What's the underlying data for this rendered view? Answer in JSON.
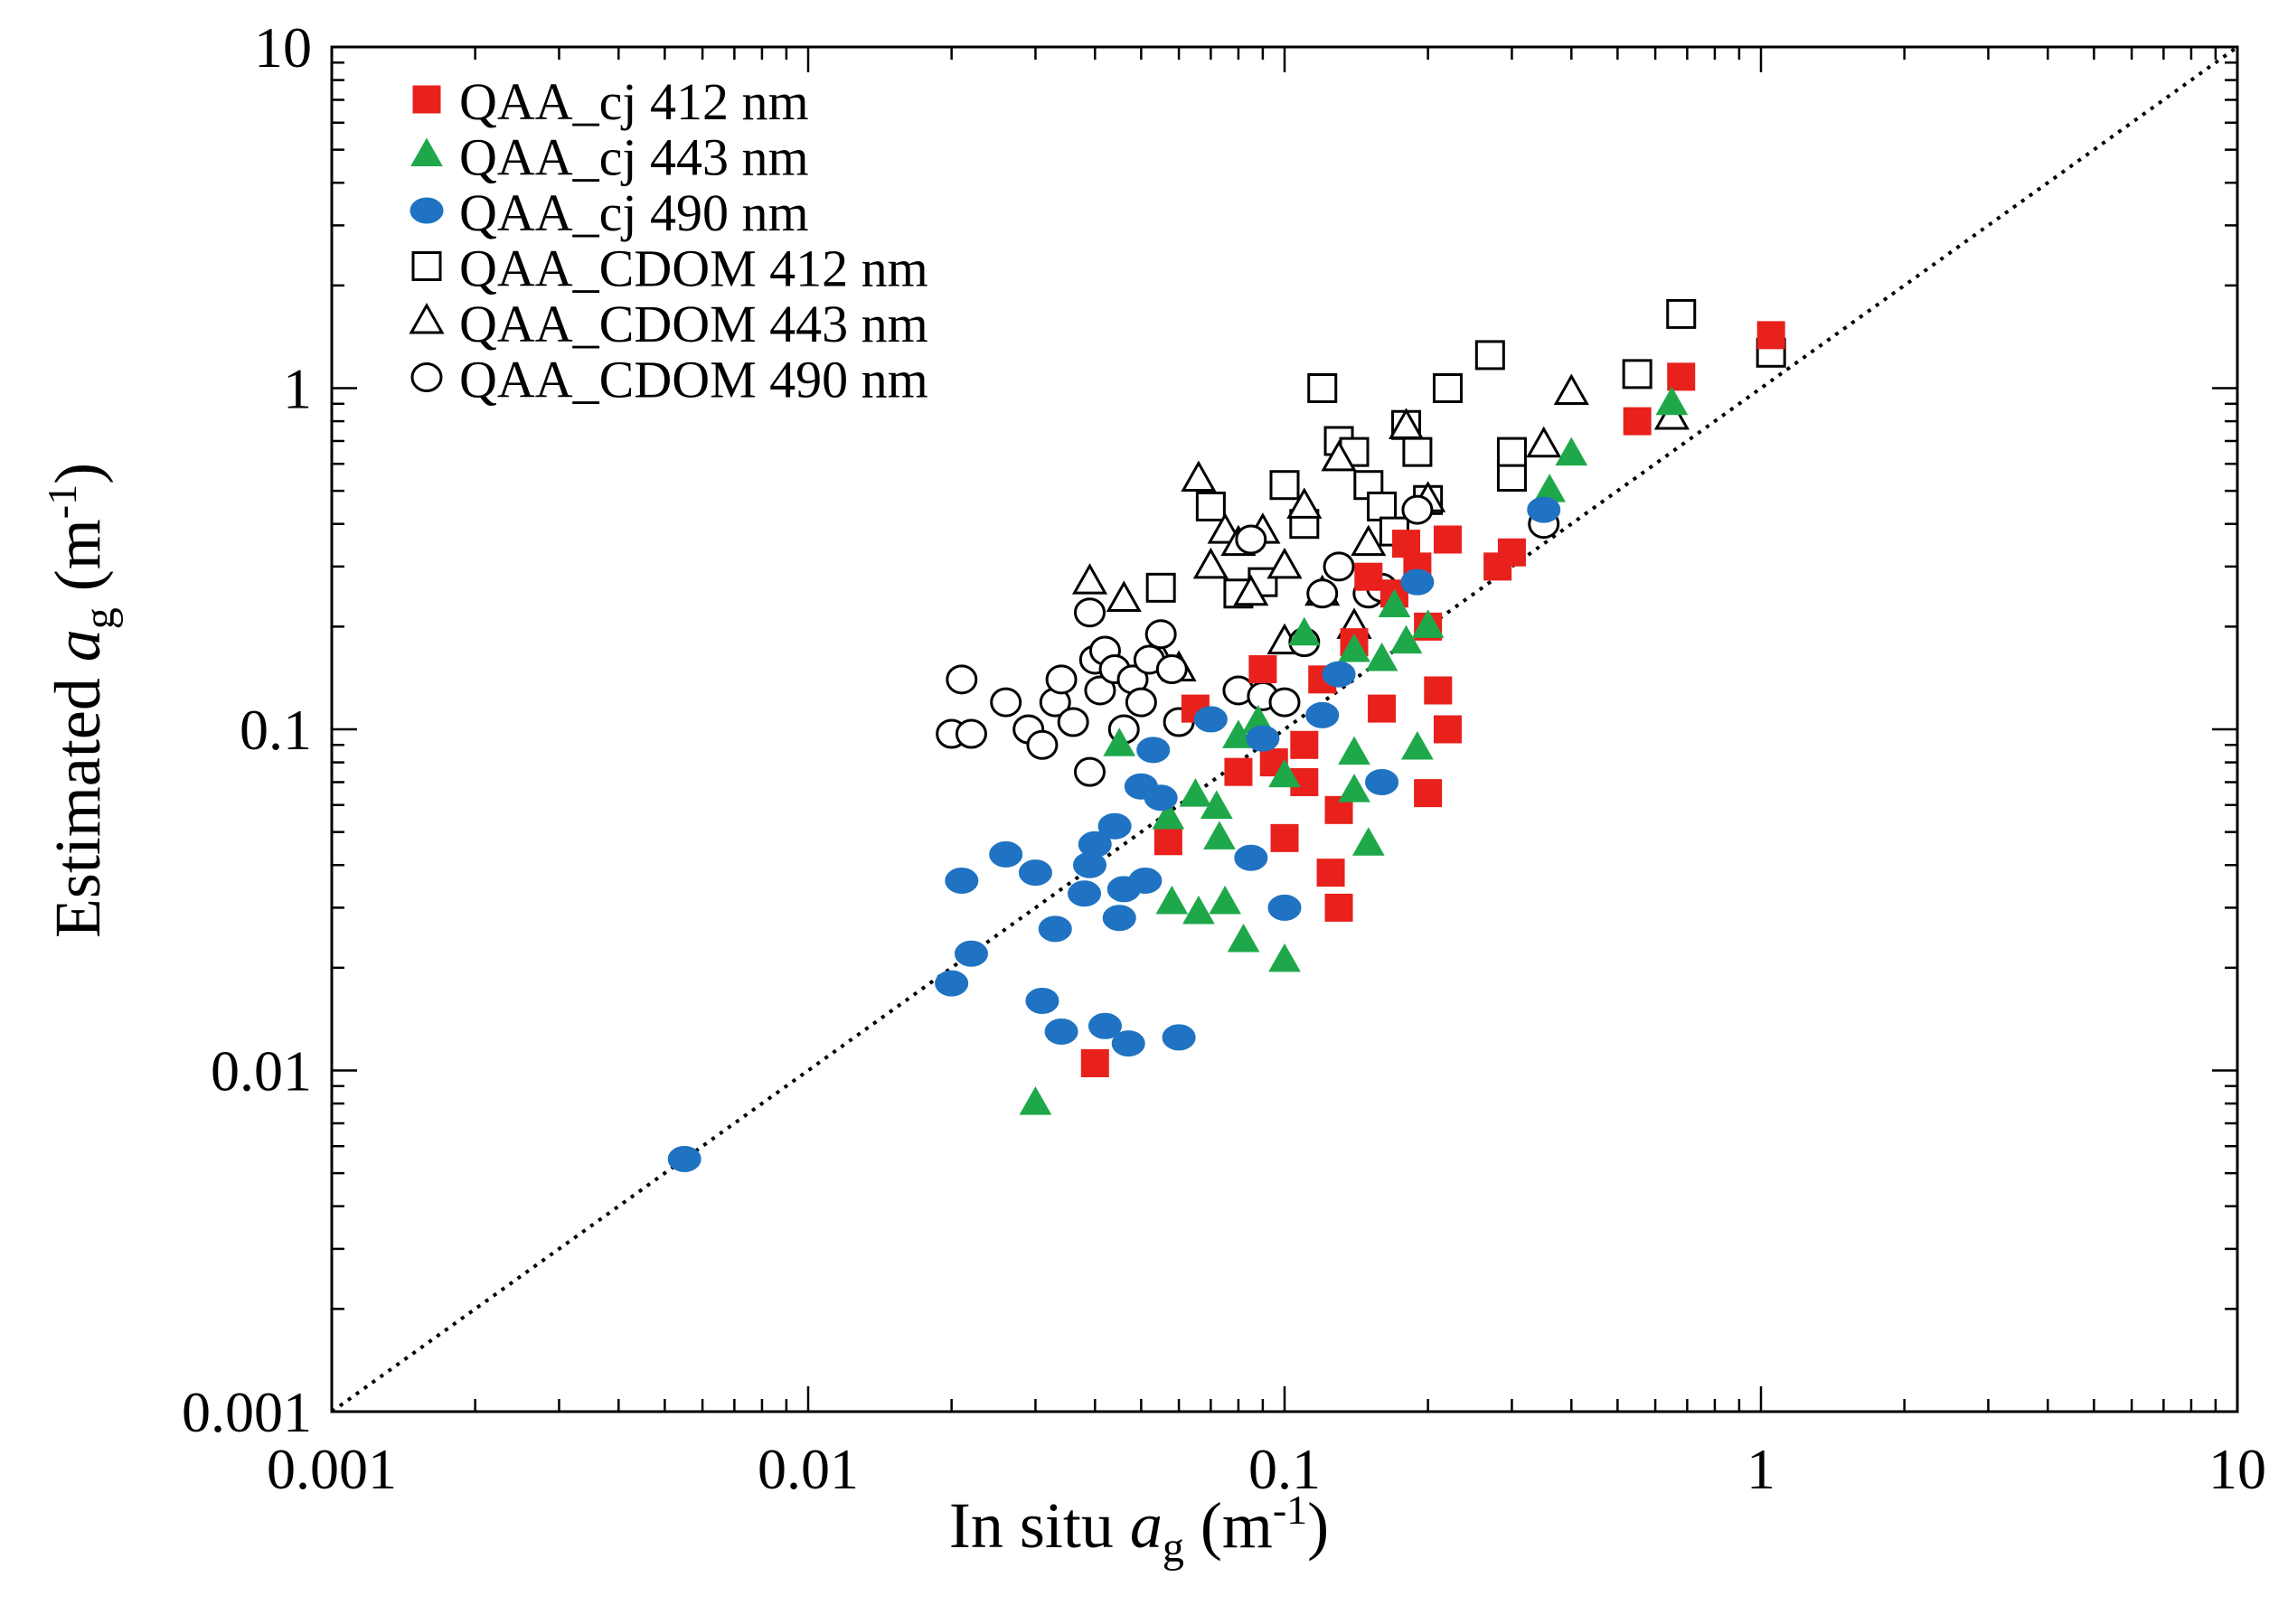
{
  "chart_data": {
    "type": "scatter",
    "xscale": "log",
    "yscale": "log",
    "xlim": [
      0.001,
      10
    ],
    "ylim": [
      0.001,
      10
    ],
    "xticks": [
      {
        "value": 0.001,
        "label": "0.001"
      },
      {
        "value": 0.01,
        "label": "0.01"
      },
      {
        "value": 0.1,
        "label": "0.1"
      },
      {
        "value": 1,
        "label": "1"
      },
      {
        "value": 10,
        "label": "10"
      }
    ],
    "yticks": [
      {
        "value": 0.001,
        "label": "0.001"
      },
      {
        "value": 0.01,
        "label": "0.01"
      },
      {
        "value": 0.1,
        "label": "0.1"
      },
      {
        "value": 1,
        "label": "1"
      },
      {
        "value": 10,
        "label": "10"
      }
    ],
    "xlabel": {
      "main": "In situ ",
      "var": "a",
      "sub": "g",
      "unit_open": " (m",
      "sup": "-1",
      "unit_close": ")"
    },
    "ylabel": {
      "main": "Estimated ",
      "var": "a",
      "sub": "g",
      "unit_open": " (m",
      "sup": "-1",
      "unit_close": ")"
    },
    "grid": false,
    "legend_position": "top-left",
    "reference_line": "1:1 dotted",
    "series": [
      {
        "name": "QAA_cj 412 nm",
        "marker": "square",
        "filled": true,
        "color": "#e8211d",
        "points": [
          [
            0.04,
            0.0105
          ],
          [
            0.057,
            0.047
          ],
          [
            0.065,
            0.115
          ],
          [
            0.08,
            0.075
          ],
          [
            0.09,
            0.15
          ],
          [
            0.095,
            0.08
          ],
          [
            0.1,
            0.048
          ],
          [
            0.11,
            0.09
          ],
          [
            0.11,
            0.07
          ],
          [
            0.12,
            0.14
          ],
          [
            0.125,
            0.038
          ],
          [
            0.13,
            0.058
          ],
          [
            0.13,
            0.03
          ],
          [
            0.14,
            0.18
          ],
          [
            0.15,
            0.28
          ],
          [
            0.16,
            0.115
          ],
          [
            0.17,
            0.25
          ],
          [
            0.18,
            0.35
          ],
          [
            0.19,
            0.3
          ],
          [
            0.2,
            0.2
          ],
          [
            0.2,
            0.065
          ],
          [
            0.21,
            0.13
          ],
          [
            0.22,
            0.1
          ],
          [
            0.22,
            0.36
          ],
          [
            0.28,
            0.3
          ],
          [
            0.3,
            0.33
          ],
          [
            0.55,
            0.8
          ],
          [
            0.68,
            1.08
          ],
          [
            1.05,
            1.43
          ]
        ]
      },
      {
        "name": "QAA_cj 443 nm",
        "marker": "triangle",
        "filled": true,
        "color": "#1ea84a",
        "points": [
          [
            0.03,
            0.008
          ],
          [
            0.045,
            0.09
          ],
          [
            0.057,
            0.055
          ],
          [
            0.058,
            0.031
          ],
          [
            0.065,
            0.064
          ],
          [
            0.066,
            0.029
          ],
          [
            0.072,
            0.059
          ],
          [
            0.073,
            0.048
          ],
          [
            0.075,
            0.031
          ],
          [
            0.08,
            0.095
          ],
          [
            0.082,
            0.024
          ],
          [
            0.088,
            0.105
          ],
          [
            0.1,
            0.021
          ],
          [
            0.1,
            0.073
          ],
          [
            0.11,
            0.19
          ],
          [
            0.14,
            0.085
          ],
          [
            0.14,
            0.066
          ],
          [
            0.15,
            0.046
          ],
          [
            0.14,
            0.17
          ],
          [
            0.16,
            0.16
          ],
          [
            0.17,
            0.23
          ],
          [
            0.18,
            0.18
          ],
          [
            0.19,
            0.088
          ],
          [
            0.2,
            0.2
          ],
          [
            0.36,
            0.5
          ],
          [
            0.4,
            0.64
          ],
          [
            0.65,
            0.9
          ]
        ]
      },
      {
        "name": "QAA_cj 490 nm",
        "marker": "circle",
        "filled": true,
        "color": "#1f73c2",
        "points": [
          [
            0.0055,
            0.0055
          ],
          [
            0.02,
            0.018
          ],
          [
            0.022,
            0.022
          ],
          [
            0.021,
            0.036
          ],
          [
            0.026,
            0.043
          ],
          [
            0.03,
            0.038
          ],
          [
            0.031,
            0.016
          ],
          [
            0.033,
            0.026
          ],
          [
            0.034,
            0.013
          ],
          [
            0.038,
            0.033
          ],
          [
            0.039,
            0.04
          ],
          [
            0.04,
            0.046
          ],
          [
            0.042,
            0.0135
          ],
          [
            0.044,
            0.052
          ],
          [
            0.045,
            0.028
          ],
          [
            0.046,
            0.034
          ],
          [
            0.047,
            0.012
          ],
          [
            0.05,
            0.068
          ],
          [
            0.051,
            0.036
          ],
          [
            0.053,
            0.087
          ],
          [
            0.055,
            0.063
          ],
          [
            0.06,
            0.0125
          ],
          [
            0.07,
            0.107
          ],
          [
            0.085,
            0.042
          ],
          [
            0.09,
            0.094
          ],
          [
            0.1,
            0.03
          ],
          [
            0.12,
            0.11
          ],
          [
            0.13,
            0.145
          ],
          [
            0.16,
            0.07
          ],
          [
            0.19,
            0.27
          ],
          [
            0.35,
            0.44
          ]
        ]
      },
      {
        "name": "QAA_CDOM 412 nm",
        "marker": "square",
        "filled": false,
        "color": "#000000",
        "points": [
          [
            0.055,
            0.26
          ],
          [
            0.07,
            0.45
          ],
          [
            0.08,
            0.25
          ],
          [
            0.09,
            0.27
          ],
          [
            0.1,
            0.52
          ],
          [
            0.11,
            0.4
          ],
          [
            0.12,
            1.0
          ],
          [
            0.13,
            0.7
          ],
          [
            0.14,
            0.65
          ],
          [
            0.15,
            0.52
          ],
          [
            0.16,
            0.45
          ],
          [
            0.17,
            0.38
          ],
          [
            0.18,
            0.78
          ],
          [
            0.19,
            0.65
          ],
          [
            0.2,
            0.47
          ],
          [
            0.22,
            1.0
          ],
          [
            0.27,
            1.25
          ],
          [
            0.3,
            0.55
          ],
          [
            0.3,
            0.65
          ],
          [
            0.55,
            1.1
          ],
          [
            0.68,
            1.65
          ],
          [
            1.05,
            1.27
          ]
        ]
      },
      {
        "name": "QAA_CDOM 443 nm",
        "marker": "triangle",
        "filled": false,
        "color": "#000000",
        "points": [
          [
            0.039,
            0.27
          ],
          [
            0.046,
            0.24
          ],
          [
            0.055,
            0.16
          ],
          [
            0.06,
            0.15
          ],
          [
            0.066,
            0.54
          ],
          [
            0.07,
            0.3
          ],
          [
            0.075,
            0.38
          ],
          [
            0.08,
            0.35
          ],
          [
            0.085,
            0.25
          ],
          [
            0.09,
            0.38
          ],
          [
            0.1,
            0.3
          ],
          [
            0.1,
            0.18
          ],
          [
            0.11,
            0.45
          ],
          [
            0.12,
            0.25
          ],
          [
            0.13,
            0.62
          ],
          [
            0.14,
            0.2
          ],
          [
            0.15,
            0.35
          ],
          [
            0.18,
            0.77
          ],
          [
            0.2,
            0.47
          ],
          [
            0.35,
            0.68
          ],
          [
            0.4,
            0.97
          ],
          [
            0.65,
            0.82
          ]
        ]
      },
      {
        "name": "QAA_CDOM 490 nm",
        "marker": "circle",
        "filled": false,
        "color": "#000000",
        "points": [
          [
            0.02,
            0.097
          ],
          [
            0.021,
            0.14
          ],
          [
            0.022,
            0.097
          ],
          [
            0.026,
            0.12
          ],
          [
            0.029,
            0.1
          ],
          [
            0.031,
            0.09
          ],
          [
            0.033,
            0.12
          ],
          [
            0.034,
            0.14
          ],
          [
            0.036,
            0.105
          ],
          [
            0.039,
            0.075
          ],
          [
            0.039,
            0.22
          ],
          [
            0.04,
            0.16
          ],
          [
            0.041,
            0.13
          ],
          [
            0.042,
            0.17
          ],
          [
            0.044,
            0.15
          ],
          [
            0.046,
            0.1
          ],
          [
            0.048,
            0.14
          ],
          [
            0.05,
            0.12
          ],
          [
            0.052,
            0.16
          ],
          [
            0.055,
            0.19
          ],
          [
            0.058,
            0.15
          ],
          [
            0.06,
            0.105
          ],
          [
            0.08,
            0.13
          ],
          [
            0.085,
            0.36
          ],
          [
            0.09,
            0.125
          ],
          [
            0.1,
            0.12
          ],
          [
            0.11,
            0.18
          ],
          [
            0.12,
            0.25
          ],
          [
            0.13,
            0.3
          ],
          [
            0.15,
            0.25
          ],
          [
            0.16,
            0.26
          ],
          [
            0.19,
            0.44
          ],
          [
            0.35,
            0.4
          ]
        ]
      }
    ]
  }
}
